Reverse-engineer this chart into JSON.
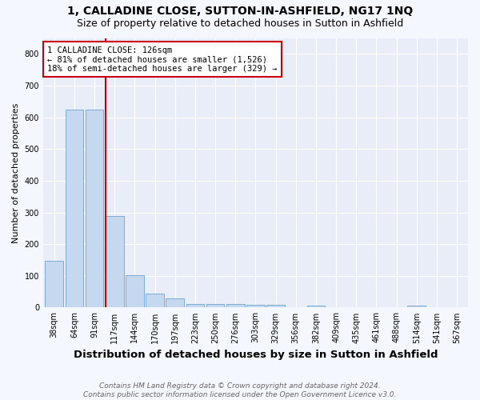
{
  "title": "1, CALLADINE CLOSE, SUTTON-IN-ASHFIELD, NG17 1NQ",
  "subtitle": "Size of property relative to detached houses in Sutton in Ashfield",
  "xlabel": "Distribution of detached houses by size in Sutton in Ashfield",
  "ylabel": "Number of detached properties",
  "footnote": "Contains HM Land Registry data © Crown copyright and database right 2024.\nContains public sector information licensed under the Open Government Licence v3.0.",
  "bin_labels": [
    "38sqm",
    "64sqm",
    "91sqm",
    "117sqm",
    "144sqm",
    "170sqm",
    "197sqm",
    "223sqm",
    "250sqm",
    "276sqm",
    "303sqm",
    "329sqm",
    "356sqm",
    "382sqm",
    "409sqm",
    "435sqm",
    "461sqm",
    "488sqm",
    "514sqm",
    "541sqm",
    "567sqm"
  ],
  "bar_heights": [
    148,
    625,
    625,
    289,
    102,
    44,
    30,
    10,
    10,
    10,
    8,
    8,
    0,
    7,
    0,
    0,
    0,
    0,
    7,
    0,
    0
  ],
  "bar_color": "#c5d8f0",
  "bar_edge_color": "#7aadd4",
  "vline_color": "#cc0000",
  "annotation_text": "1 CALLADINE CLOSE: 126sqm\n← 81% of detached houses are smaller (1,526)\n18% of semi-detached houses are larger (329) →",
  "annotation_box_color": "#ffffff",
  "annotation_box_edge": "#cc0000",
  "ylim": [
    0,
    850
  ],
  "yticks": [
    0,
    100,
    200,
    300,
    400,
    500,
    600,
    700,
    800
  ],
  "background_color": "#f5f7fe",
  "plot_bg_color": "#e8edf8",
  "title_fontsize": 10,
  "subtitle_fontsize": 9,
  "xlabel_fontsize": 9.5,
  "ylabel_fontsize": 8,
  "tick_fontsize": 7,
  "footnote_fontsize": 6.5
}
